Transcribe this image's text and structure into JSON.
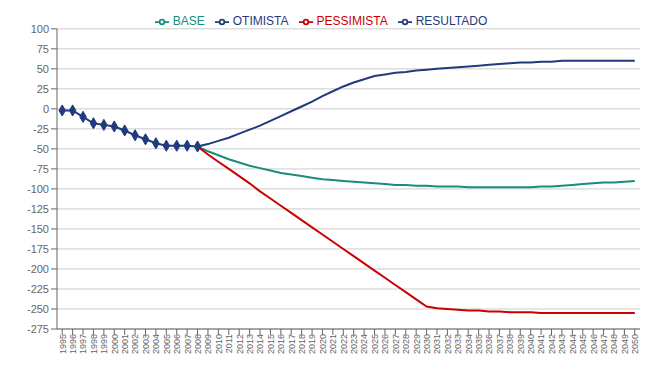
{
  "chart_data": {
    "type": "line",
    "series": [
      {
        "name": "RESULTADO",
        "color": "#1F3A7D",
        "marker": "diamond",
        "x": [
          1995,
          1996,
          1997,
          1998,
          1999,
          2000,
          2001,
          2002,
          2003,
          2004,
          2005,
          2006,
          2007,
          2008
        ],
        "values": [
          -2,
          -2,
          -10,
          -18,
          -20,
          -22,
          -27,
          -33,
          -38,
          -43,
          -46,
          -46,
          -46,
          -47
        ]
      },
      {
        "name": "BASE",
        "color": "#1A8C7A",
        "x": [
          2008,
          2009,
          2010,
          2011,
          2012,
          2013,
          2014,
          2015,
          2016,
          2017,
          2018,
          2019,
          2020,
          2021,
          2022,
          2023,
          2024,
          2025,
          2026,
          2027,
          2028,
          2029,
          2030,
          2031,
          2032,
          2033,
          2034,
          2035,
          2036,
          2037,
          2038,
          2039,
          2040,
          2041,
          2042,
          2043,
          2044,
          2045,
          2046,
          2047,
          2048,
          2049,
          2050
        ],
        "values": [
          -47,
          -53,
          -58,
          -63,
          -67,
          -71,
          -74,
          -77,
          -80,
          -82,
          -84,
          -86,
          -88,
          -89,
          -90,
          -91,
          -92,
          -93,
          -94,
          -95,
          -95,
          -96,
          -96,
          -97,
          -97,
          -97,
          -98,
          -98,
          -98,
          -98,
          -98,
          -98,
          -98,
          -97,
          -97,
          -96,
          -95,
          -94,
          -93,
          -92,
          -92,
          -91,
          -90
        ]
      },
      {
        "name": "OTIMISTA",
        "color": "#1F3A7D",
        "x": [
          2008,
          2009,
          2010,
          2011,
          2012,
          2013,
          2014,
          2015,
          2016,
          2017,
          2018,
          2019,
          2020,
          2021,
          2022,
          2023,
          2024,
          2025,
          2026,
          2027,
          2028,
          2029,
          2030,
          2031,
          2032,
          2033,
          2034,
          2035,
          2036,
          2037,
          2038,
          2039,
          2040,
          2041,
          2042,
          2043,
          2044,
          2045,
          2046,
          2047,
          2048,
          2049,
          2050
        ],
        "values": [
          -47,
          -44,
          -40,
          -36,
          -31,
          -26,
          -21,
          -15,
          -9,
          -3,
          3,
          9,
          16,
          22,
          28,
          33,
          37,
          41,
          43,
          45,
          46,
          48,
          49,
          50,
          51,
          52,
          53,
          54,
          55,
          56,
          57,
          58,
          58,
          59,
          59,
          60,
          60,
          60,
          60,
          60,
          60,
          60,
          60
        ]
      },
      {
        "name": "PESSIMISTA",
        "color": "#CC0000",
        "x": [
          2008,
          2009,
          2010,
          2011,
          2012,
          2013,
          2014,
          2015,
          2016,
          2017,
          2018,
          2019,
          2020,
          2021,
          2022,
          2023,
          2024,
          2025,
          2026,
          2027,
          2028,
          2029,
          2030,
          2031,
          2032,
          2033,
          2034,
          2035,
          2036,
          2037,
          2038,
          2039,
          2040,
          2041,
          2042,
          2043,
          2044,
          2045,
          2046,
          2047,
          2048,
          2049,
          2050
        ],
        "values": [
          -47,
          -57,
          -66,
          -75,
          -84,
          -93,
          -103,
          -112,
          -121,
          -130,
          -139,
          -148,
          -157,
          -166,
          -175,
          -184,
          -193,
          -202,
          -211,
          -220,
          -229,
          -238,
          -247,
          -249,
          -250,
          -251,
          -252,
          -252,
          -253,
          -253,
          -254,
          -254,
          -254,
          -255,
          -255,
          -255,
          -255,
          -255,
          -255,
          -255,
          -255,
          -255,
          -255
        ]
      }
    ],
    "xlim": [
      1994.5,
      2050.5
    ],
    "xticks": [
      1995,
      1996,
      1997,
      1998,
      1999,
      2000,
      2001,
      2002,
      2003,
      2004,
      2005,
      2006,
      2007,
      2008,
      2009,
      2010,
      2011,
      2012,
      2013,
      2014,
      2015,
      2016,
      2017,
      2018,
      2019,
      2020,
      2021,
      2022,
      2023,
      2024,
      2025,
      2026,
      2027,
      2028,
      2029,
      2030,
      2031,
      2032,
      2033,
      2034,
      2035,
      2036,
      2037,
      2038,
      2039,
      2040,
      2041,
      2042,
      2043,
      2044,
      2045,
      2046,
      2047,
      2048,
      2049,
      2050
    ],
    "ylim": [
      -275,
      100
    ],
    "yticks": [
      100,
      75,
      50,
      25,
      0,
      -25,
      -50,
      -75,
      -100,
      -125,
      -150,
      -175,
      -200,
      -225,
      -250,
      -275
    ],
    "grid": "y",
    "legend": "top"
  }
}
